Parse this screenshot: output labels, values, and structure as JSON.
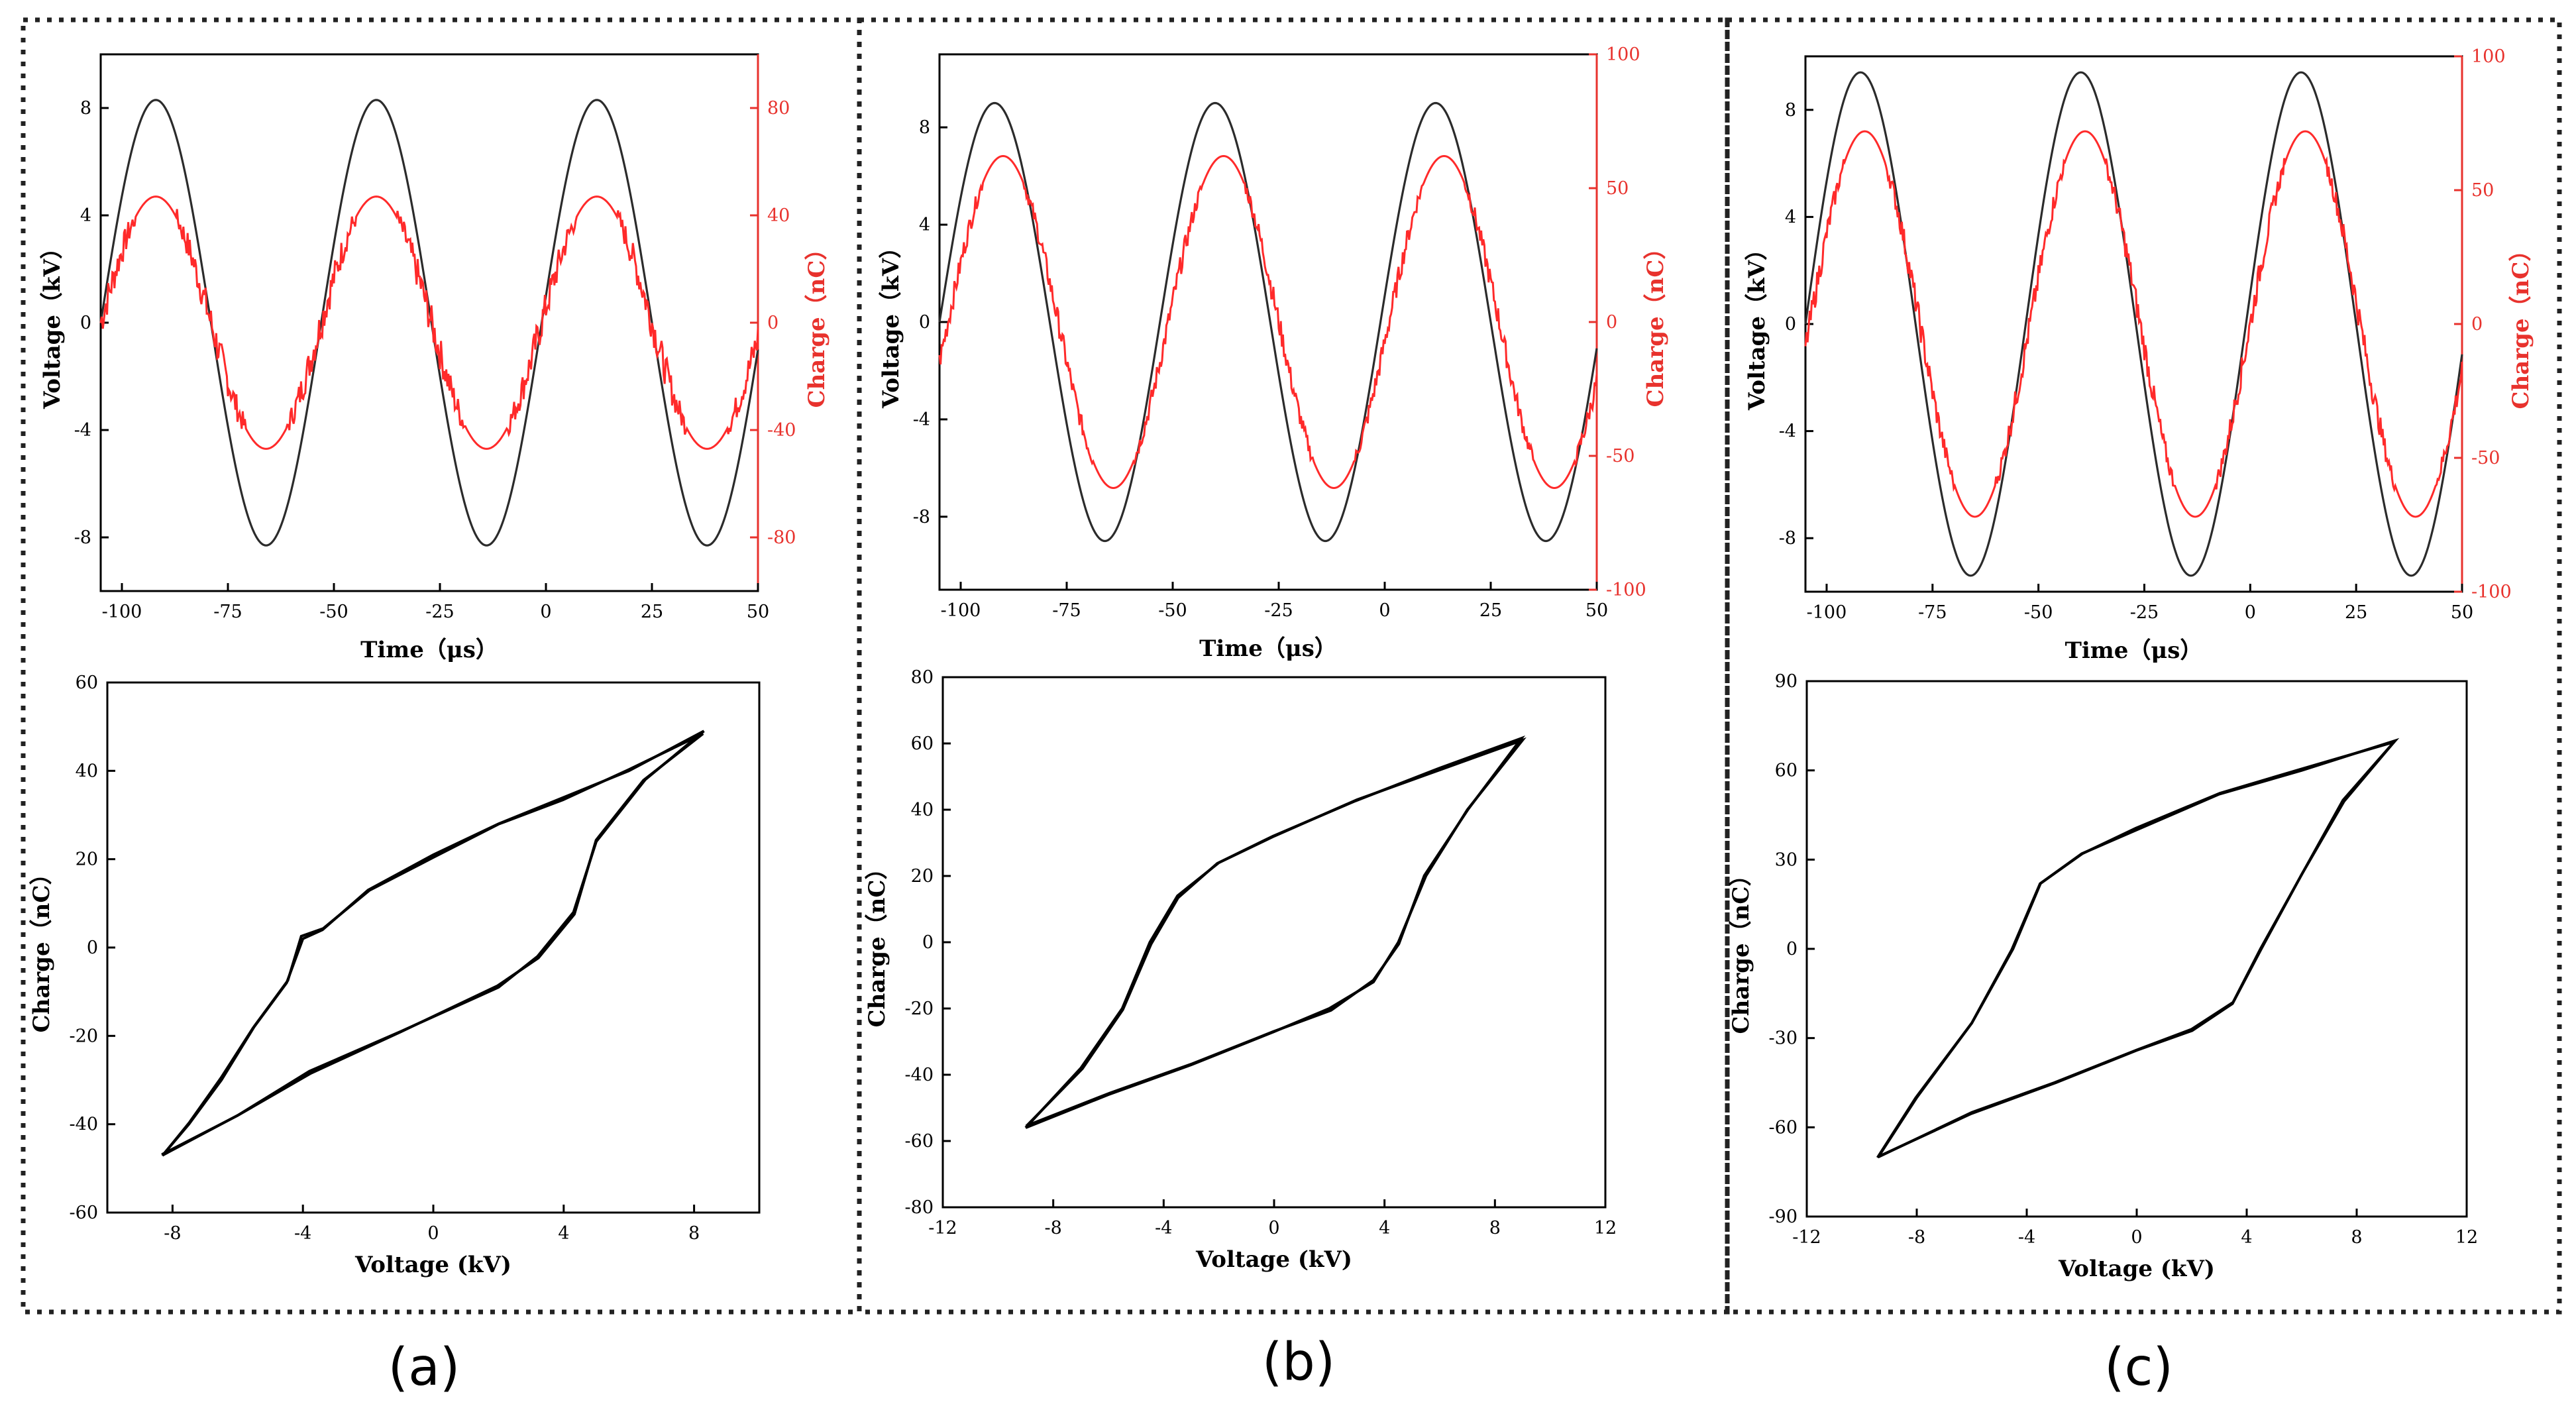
{
  "panel_labels": [
    "(a)",
    "(b)",
    "(c)"
  ],
  "chart_data": [
    {
      "panel": "(a)",
      "type": "line",
      "xlabel": "Time（μs）",
      "ylabel": "Voltage（kV）",
      "y2label": "Charge（nC）",
      "xlim": [
        -105,
        50
      ],
      "ylim": [
        -10,
        10
      ],
      "y2lim": [
        -100,
        100
      ],
      "xticks": [
        -100,
        -75,
        -50,
        -25,
        0,
        25,
        50
      ],
      "xtick_labels": [
        "-100",
        "-75",
        "-50",
        "-25",
        "0",
        "25",
        "50"
      ],
      "yticks": [
        -8,
        -4,
        0,
        4,
        8
      ],
      "ytick_labels": [
        "-8",
        "-4",
        "0",
        "4",
        "8"
      ],
      "y2ticks": [
        -80,
        -40,
        0,
        40,
        80
      ],
      "y2tick_labels": [
        "-80",
        "-40",
        "0",
        "40",
        "80"
      ],
      "series": [
        {
          "name": "Voltage",
          "axis": "left",
          "color": "#2b2b2b",
          "amplitude": 8.3,
          "period": 52,
          "peak_times": [
            -92,
            -40,
            12
          ]
        },
        {
          "name": "Charge",
          "axis": "right",
          "color": "#ff2a2a",
          "amplitude": 47,
          "period": 52,
          "peak_times": [
            -92,
            -40,
            12
          ],
          "trough_times": [
            -66,
            -14,
            38
          ]
        }
      ]
    },
    {
      "panel": "(a)",
      "type": "line",
      "xlabel": "Voltage (kV)",
      "ylabel": "Charge（nC）",
      "xlim": [
        -10,
        10
      ],
      "ylim": [
        -60,
        60
      ],
      "xticks": [
        -8,
        -4,
        0,
        4,
        8
      ],
      "xtick_labels": [
        "-8",
        "-4",
        "0",
        "4",
        "8"
      ],
      "yticks": [
        -60,
        -40,
        -20,
        0,
        20,
        40,
        60
      ],
      "ytick_labels": [
        "-60",
        "-40",
        "-20",
        "0",
        "20",
        "40",
        "60"
      ],
      "series": [
        {
          "name": "Q-V loop",
          "color": "#000000",
          "points": [
            [
              -8.3,
              -47
            ],
            [
              -6,
              -38
            ],
            [
              -3.8,
              -28
            ],
            [
              -1,
              -19
            ],
            [
              2,
              -9
            ],
            [
              3.2,
              -2
            ],
            [
              4.3,
              8
            ],
            [
              5,
              24
            ],
            [
              6.5,
              38
            ],
            [
              8.3,
              49
            ],
            [
              6,
              40
            ],
            [
              4,
              34
            ],
            [
              2,
              28
            ],
            [
              0,
              21
            ],
            [
              -2,
              13
            ],
            [
              -3.4,
              4
            ],
            [
              -4,
              2
            ],
            [
              -4.5,
              -8
            ],
            [
              -5.5,
              -18
            ],
            [
              -6.5,
              -30
            ],
            [
              -7.5,
              -40
            ],
            [
              -8.3,
              -47
            ]
          ]
        }
      ]
    },
    {
      "panel": "(b)",
      "type": "line",
      "xlabel": "Time（μs）",
      "ylabel": "Voltage（kV）",
      "y2label": "Charge（nC）",
      "xlim": [
        -105,
        50
      ],
      "ylim": [
        -11,
        11
      ],
      "y2lim": [
        -100,
        100
      ],
      "xticks": [
        -100,
        -75,
        -50,
        -25,
        0,
        25,
        50
      ],
      "xtick_labels": [
        "-100",
        "-75",
        "-50",
        "-25",
        "0",
        "25",
        "50"
      ],
      "yticks": [
        -8,
        -4,
        0,
        4,
        8
      ],
      "ytick_labels": [
        "-8",
        "-4",
        "0",
        "4",
        "8"
      ],
      "y2ticks": [
        -100,
        -50,
        0,
        50,
        100
      ],
      "y2tick_labels": [
        "-100",
        "-50",
        "0",
        "50",
        "100"
      ],
      "series": [
        {
          "name": "Voltage",
          "axis": "left",
          "color": "#2b2b2b",
          "amplitude": 9.0,
          "period": 52,
          "peak_times": [
            -92,
            -40,
            12
          ]
        },
        {
          "name": "Charge",
          "axis": "right",
          "color": "#ff2a2a",
          "amplitude": 62,
          "period": 52,
          "peak_times": [
            -90,
            -38,
            14
          ],
          "trough_times": [
            -64,
            -12,
            40
          ]
        }
      ]
    },
    {
      "panel": "(b)",
      "type": "line",
      "xlabel": "Voltage (kV)",
      "ylabel": "Charge（nC）",
      "xlim": [
        -12,
        12
      ],
      "ylim": [
        -80,
        80
      ],
      "xticks": [
        -12,
        -8,
        -4,
        0,
        4,
        8,
        12
      ],
      "xtick_labels": [
        "-12",
        "-8",
        "-4",
        "0",
        "4",
        "8",
        "12"
      ],
      "yticks": [
        -80,
        -60,
        -40,
        -20,
        0,
        20,
        40,
        60,
        80
      ],
      "ytick_labels": [
        "-80",
        "-60",
        "-40",
        "-20",
        "0",
        "20",
        "40",
        "60",
        "80"
      ],
      "series": [
        {
          "name": "Q-V loop",
          "color": "#000000",
          "points": [
            [
              -9,
              -56
            ],
            [
              -6,
              -46
            ],
            [
              -3,
              -37
            ],
            [
              0,
              -27
            ],
            [
              2,
              -20
            ],
            [
              3.6,
              -12
            ],
            [
              4.5,
              0
            ],
            [
              5.5,
              20
            ],
            [
              7,
              40
            ],
            [
              9,
              61
            ],
            [
              6,
              52
            ],
            [
              3,
              43
            ],
            [
              0,
              32
            ],
            [
              -2,
              24
            ],
            [
              -3.5,
              14
            ],
            [
              -4.5,
              0
            ],
            [
              -5.5,
              -20
            ],
            [
              -7,
              -38
            ],
            [
              -9,
              -56
            ]
          ]
        }
      ]
    },
    {
      "panel": "(c)",
      "type": "line",
      "xlabel": "Time（μs）",
      "ylabel": "Voltage（kV）",
      "y2label": "Charge（nC）",
      "xlim": [
        -105,
        50
      ],
      "ylim": [
        -10,
        10
      ],
      "y2lim": [
        -100,
        100
      ],
      "xticks": [
        -100,
        -75,
        -50,
        -25,
        0,
        25,
        50
      ],
      "xtick_labels": [
        "-100",
        "-75",
        "-50",
        "-25",
        "0",
        "25",
        "50"
      ],
      "yticks": [
        -8,
        -4,
        0,
        4,
        8
      ],
      "ytick_labels": [
        "-8",
        "-4",
        "0",
        "4",
        "8"
      ],
      "y2ticks": [
        -100,
        -50,
        0,
        50,
        100
      ],
      "y2tick_labels": [
        "-100",
        "-50",
        "0",
        "50",
        "100"
      ],
      "series": [
        {
          "name": "Voltage",
          "axis": "left",
          "color": "#2b2b2b",
          "amplitude": 9.4,
          "period": 52,
          "peak_times": [
            -92,
            -40,
            12
          ]
        },
        {
          "name": "Charge",
          "axis": "right",
          "color": "#ff2a2a",
          "amplitude": 72,
          "period": 52,
          "peak_times": [
            -91,
            -39,
            13
          ],
          "trough_times": [
            -65,
            -13,
            39
          ]
        }
      ]
    },
    {
      "panel": "(c)",
      "type": "line",
      "xlabel": "Voltage (kV)",
      "ylabel": "Charge（nC）",
      "xlim": [
        -12,
        12
      ],
      "ylim": [
        -90,
        90
      ],
      "xticks": [
        -12,
        -8,
        -4,
        0,
        4,
        8,
        12
      ],
      "xtick_labels": [
        "-12",
        "-8",
        "-4",
        "0",
        "4",
        "8",
        "12"
      ],
      "yticks": [
        -90,
        -60,
        -30,
        0,
        30,
        60,
        90
      ],
      "ytick_labels": [
        "-90",
        "-60",
        "-30",
        "0",
        "30",
        "60",
        "90"
      ],
      "series": [
        {
          "name": "Q-V loop",
          "color": "#000000",
          "points": [
            [
              -9.4,
              -70
            ],
            [
              -6,
              -55
            ],
            [
              -3,
              -45
            ],
            [
              0,
              -34
            ],
            [
              2,
              -27
            ],
            [
              3.5,
              -18
            ],
            [
              4.5,
              0
            ],
            [
              6,
              25
            ],
            [
              7.5,
              50
            ],
            [
              9.4,
              70
            ],
            [
              6,
              60
            ],
            [
              3,
              52
            ],
            [
              0,
              40
            ],
            [
              -2,
              32
            ],
            [
              -3.5,
              22
            ],
            [
              -4.5,
              0
            ],
            [
              -6,
              -25
            ],
            [
              -8,
              -50
            ],
            [
              -9.4,
              -70
            ]
          ]
        }
      ]
    }
  ]
}
